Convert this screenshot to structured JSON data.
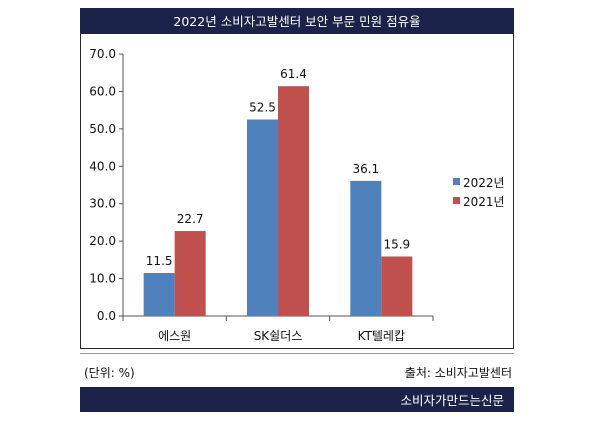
{
  "header": {
    "title": "2022년 소비자고발센터 보안 부문 민원 점유율"
  },
  "notes": {
    "unit": "(단위: %)",
    "source": "출처: 소비자고발센터"
  },
  "footer": {
    "brand": "소비자가만드는신문"
  },
  "colors": {
    "series_2022": "#4f81bd",
    "series_2021": "#c0504d",
    "banner": "#1a2249"
  },
  "chart_data": {
    "type": "bar",
    "title": "",
    "xlabel": "",
    "ylabel": "",
    "categories": [
      "에스원",
      "SK쉴더스",
      "KT텔레캅"
    ],
    "series": [
      {
        "name": "2022년",
        "values": [
          11.5,
          52.5,
          36.1
        ],
        "labels": [
          "11.5",
          "52.5",
          "36.1"
        ]
      },
      {
        "name": "2021년",
        "values": [
          22.7,
          61.4,
          15.9
        ],
        "labels": [
          "22.7",
          "61.4",
          "15.9"
        ]
      }
    ],
    "ylim": [
      0,
      70
    ],
    "yticks": [
      "0.0",
      "10.0",
      "20.0",
      "30.0",
      "40.0",
      "50.0",
      "60.0",
      "70.0"
    ],
    "grid": false,
    "legend_position": "right"
  }
}
